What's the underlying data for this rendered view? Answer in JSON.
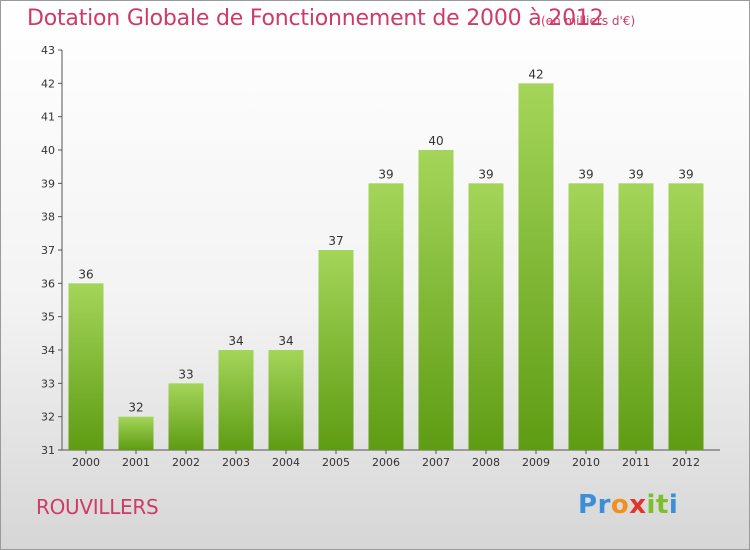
{
  "title": "Dotation Globale de Fonctionnement de 2000 à 2012",
  "subtitle": "(en milliers d'€)",
  "commune": "ROUVILLERS",
  "brand": {
    "letters": [
      "P",
      "r",
      "o",
      "x",
      "i",
      "t",
      "i"
    ],
    "colors": [
      "#3a8fd6",
      "#3a8fd6",
      "#f0901e",
      "#e0352b",
      "#7bbf2a",
      "#7bbf2a",
      "#3a8fd6"
    ]
  },
  "colors": {
    "title": "#cf3a68",
    "bar_light": "#a4d55a",
    "bar_dark": "#5e9c13"
  },
  "chart_data": {
    "type": "bar",
    "categories": [
      "2000",
      "2001",
      "2002",
      "2003",
      "2004",
      "2005",
      "2006",
      "2007",
      "2008",
      "2009",
      "2010",
      "2011",
      "2012"
    ],
    "values": [
      36,
      32,
      33,
      34,
      34,
      37,
      39,
      40,
      39,
      42,
      39,
      39,
      39
    ],
    "title": "Dotation Globale de Fonctionnement de 2000 à 2012",
    "subtitle": "(en milliers d'€)",
    "xlabel": "",
    "ylabel": "",
    "ylim": [
      31,
      43
    ],
    "yticks": [
      31,
      32,
      33,
      34,
      35,
      36,
      37,
      38,
      39,
      40,
      41,
      42,
      43
    ],
    "grid": false,
    "legend": "none"
  }
}
